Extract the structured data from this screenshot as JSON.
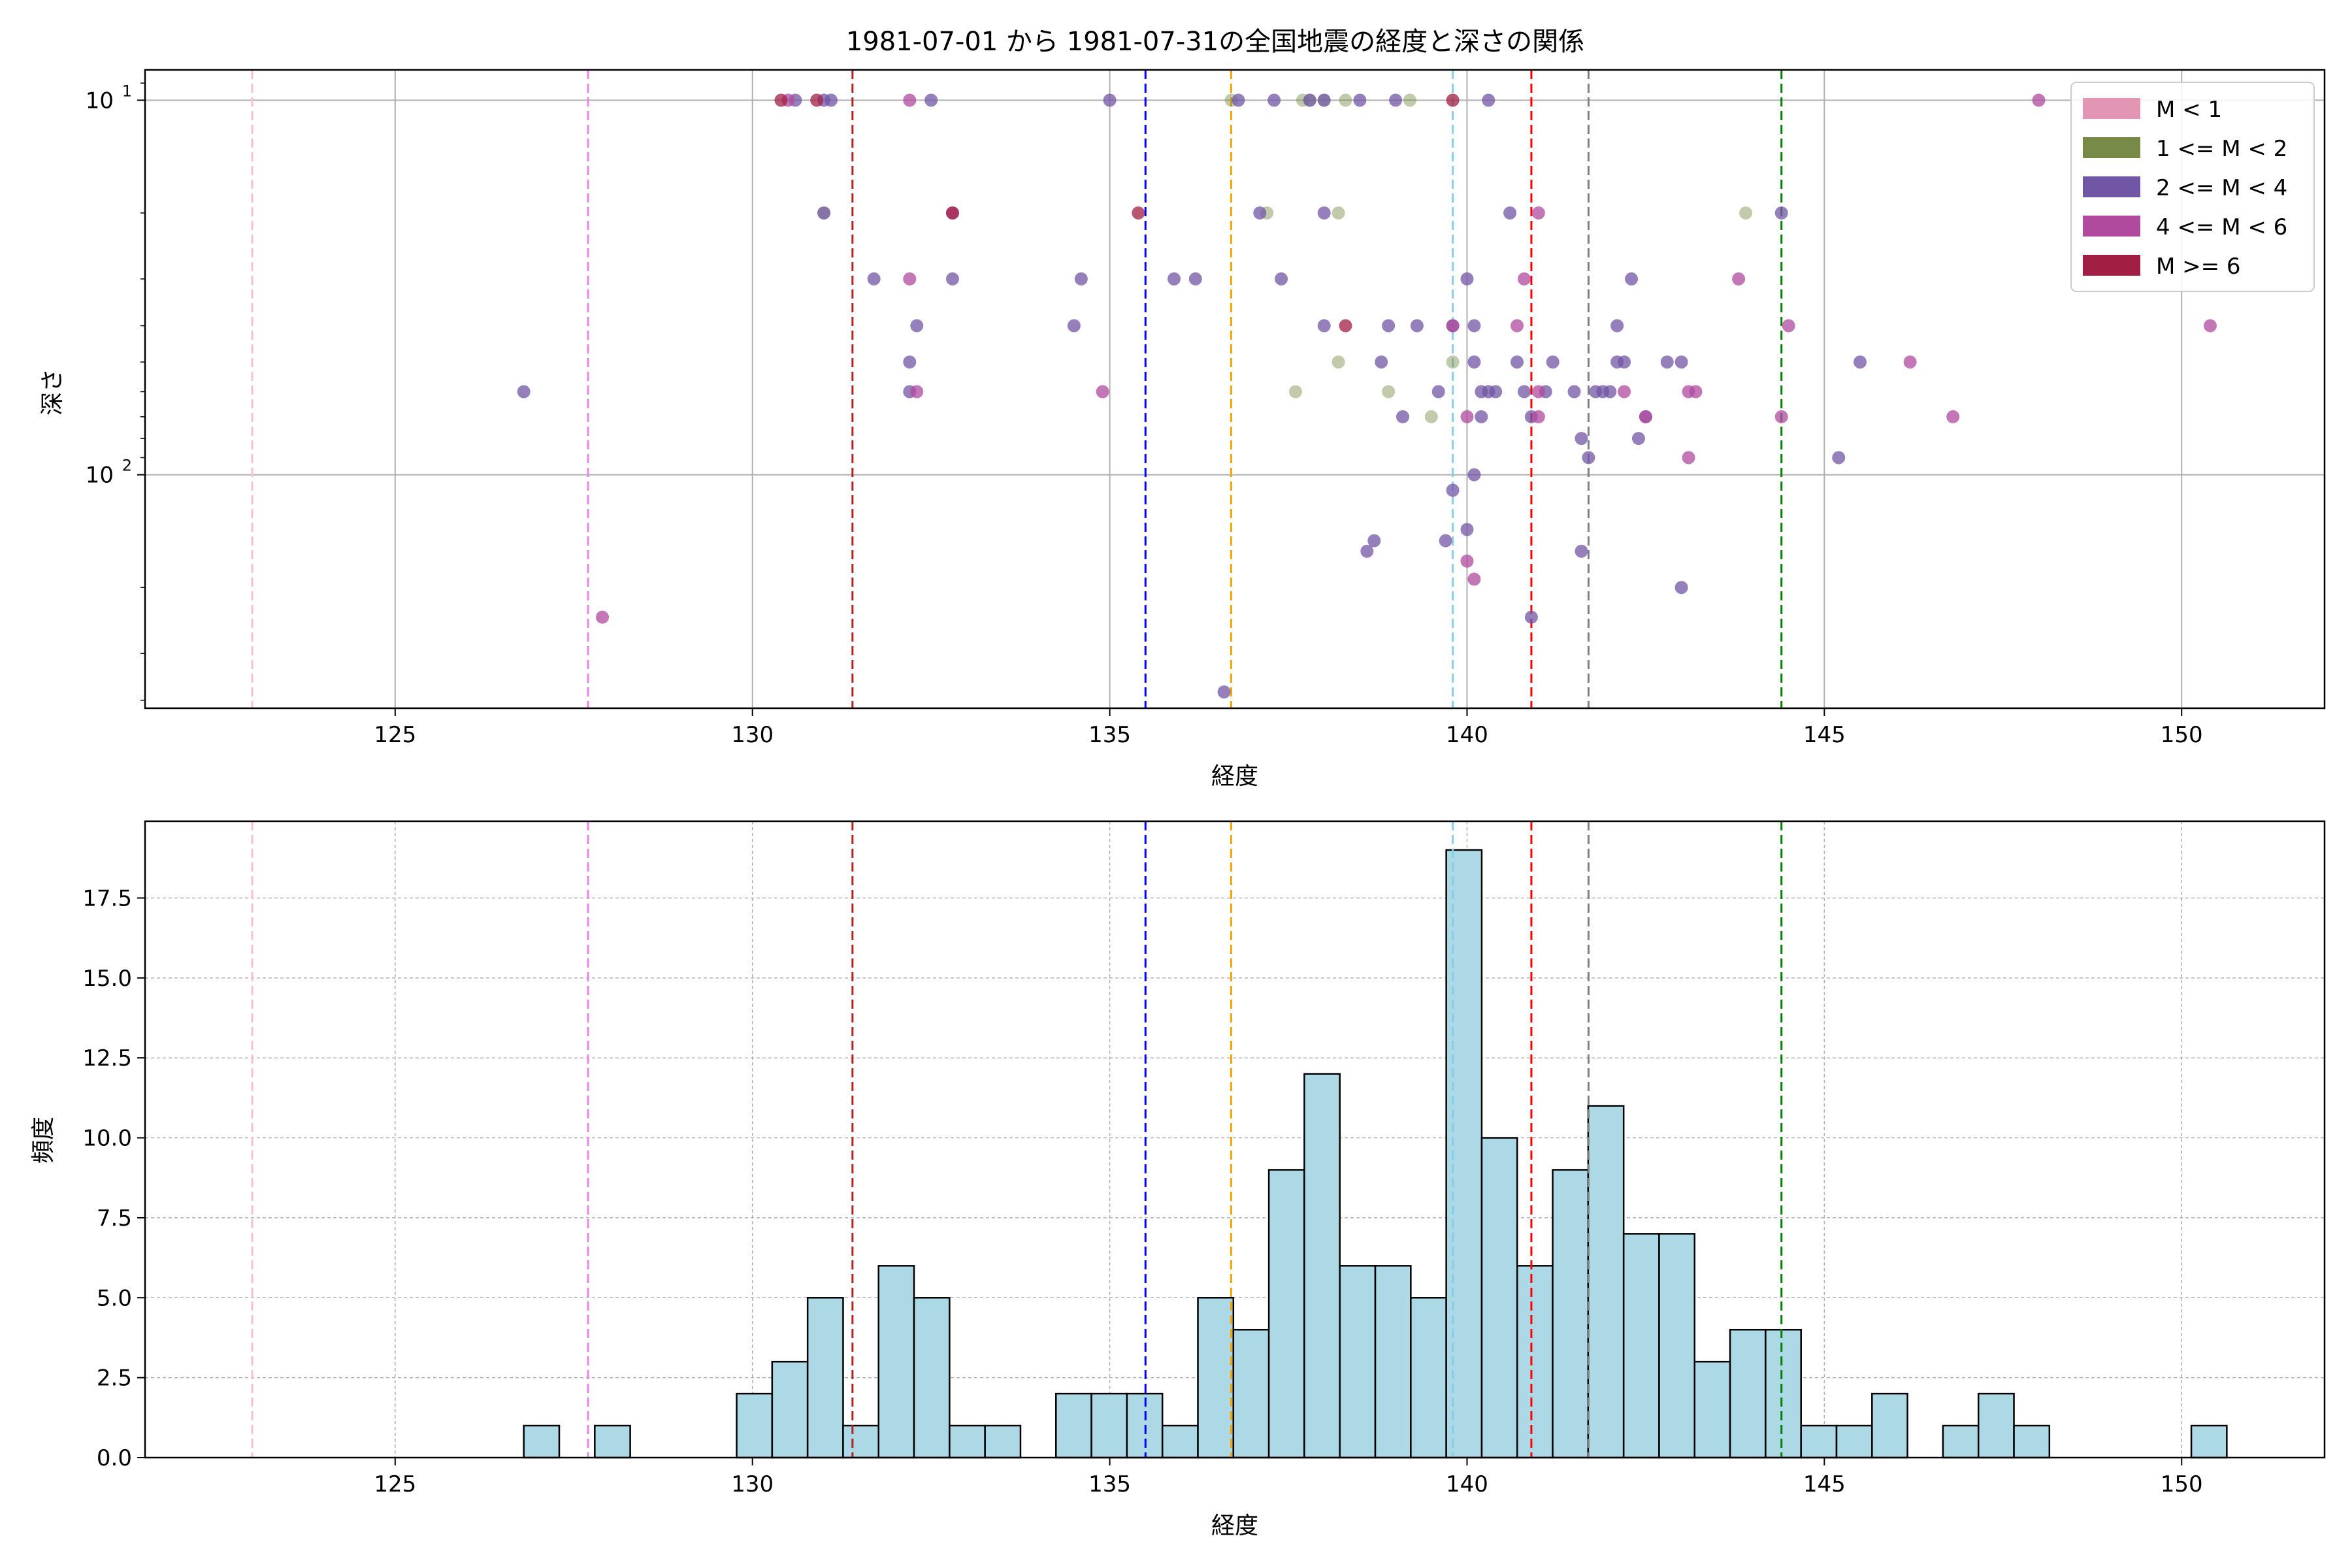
{
  "figure": {
    "title": "1981-07-01 から 1981-07-31の全国地震の経度と深さの関係"
  },
  "colors": {
    "grid": "#b0b0b0",
    "hist_fill": "#add8e6",
    "hist_edge": "#000000"
  },
  "reference_lines": [
    {
      "x": 123.0,
      "color": "#ffc0cb"
    },
    {
      "x": 127.7,
      "color": "#ee82ee"
    },
    {
      "x": 131.4,
      "color": "#b22222"
    },
    {
      "x": 135.5,
      "color": "#0000ff"
    },
    {
      "x": 136.7,
      "color": "#ffa500"
    },
    {
      "x": 139.8,
      "color": "#87ceeb"
    },
    {
      "x": 140.9,
      "color": "#ff0000"
    },
    {
      "x": 141.7,
      "color": "#808080"
    },
    {
      "x": 144.4,
      "color": "#008000"
    }
  ],
  "chart_data": [
    {
      "type": "scatter",
      "xlabel": "経度",
      "ylabel": "深さ",
      "xlim": [
        121.5,
        152.0
      ],
      "ylim": [
        420,
        8.3
      ],
      "yscale": "log",
      "y_inverted": true,
      "grid": true,
      "legend_position": "top-right",
      "xticks": [
        125,
        130,
        135,
        140,
        145,
        150
      ],
      "yticks": [
        {
          "value": 10,
          "label": "10^1"
        },
        {
          "value": 100,
          "label": "10^2"
        }
      ],
      "legend": [
        {
          "label": "M < 1",
          "color": "#e396b4"
        },
        {
          "label": "1 <= M < 2",
          "color": "#788a48"
        },
        {
          "label": "2 <= M < 4",
          "color": "#7156a5"
        },
        {
          "label": "4 <= M < 6",
          "color": "#b04a9f"
        },
        {
          "label": "M >= 6",
          "color": "#a11f43"
        }
      ],
      "series": [
        {
          "name": "1 <= M < 2",
          "points": [
            [
              131.0,
              20
            ],
            [
              137.2,
              20
            ],
            [
              138.2,
              20
            ],
            [
              136.7,
              10
            ],
            [
              137.7,
              10
            ],
            [
              137.8,
              10
            ],
            [
              138.0,
              10
            ],
            [
              138.3,
              10
            ],
            [
              139.2,
              10
            ],
            [
              137.6,
              60
            ],
            [
              138.2,
              50
            ],
            [
              138.9,
              60
            ],
            [
              139.8,
              50
            ],
            [
              139.5,
              70
            ],
            [
              143.9,
              20
            ]
          ]
        },
        {
          "name": "2 <= M < 4",
          "points": [
            [
              126.8,
              60
            ],
            [
              130.6,
              10
            ],
            [
              131.0,
              10
            ],
            [
              131.1,
              10
            ],
            [
              131.0,
              20
            ],
            [
              131.7,
              30
            ],
            [
              132.3,
              40
            ],
            [
              132.2,
              50
            ],
            [
              132.2,
              60
            ],
            [
              132.5,
              10
            ],
            [
              132.8,
              30
            ],
            [
              134.5,
              40
            ],
            [
              134.6,
              30
            ],
            [
              135.0,
              10
            ],
            [
              135.9,
              30
            ],
            [
              136.2,
              30
            ],
            [
              136.6,
              380
            ],
            [
              136.8,
              10
            ],
            [
              137.1,
              20
            ],
            [
              137.3,
              10
            ],
            [
              137.4,
              30
            ],
            [
              137.8,
              10
            ],
            [
              138.0,
              10
            ],
            [
              138.0,
              20
            ],
            [
              138.0,
              40
            ],
            [
              138.5,
              10
            ],
            [
              138.6,
              160
            ],
            [
              138.7,
              150
            ],
            [
              138.8,
              50
            ],
            [
              138.9,
              40
            ],
            [
              139.0,
              10
            ],
            [
              139.1,
              70
            ],
            [
              139.3,
              40
            ],
            [
              139.6,
              60
            ],
            [
              139.7,
              150
            ],
            [
              139.8,
              40
            ],
            [
              139.8,
              110
            ],
            [
              140.0,
              30
            ],
            [
              140.0,
              140
            ],
            [
              140.1,
              40
            ],
            [
              140.1,
              50
            ],
            [
              140.1,
              100
            ],
            [
              140.2,
              60
            ],
            [
              140.2,
              70
            ],
            [
              140.3,
              10
            ],
            [
              140.3,
              60
            ],
            [
              140.4,
              60
            ],
            [
              140.6,
              20
            ],
            [
              140.7,
              50
            ],
            [
              140.8,
              60
            ],
            [
              140.9,
              70
            ],
            [
              140.9,
              240
            ],
            [
              141.1,
              60
            ],
            [
              141.2,
              50
            ],
            [
              141.5,
              60
            ],
            [
              141.6,
              80
            ],
            [
              141.7,
              90
            ],
            [
              141.6,
              160
            ],
            [
              141.8,
              60
            ],
            [
              141.9,
              60
            ],
            [
              142.0,
              60
            ],
            [
              142.1,
              40
            ],
            [
              142.1,
              50
            ],
            [
              142.2,
              50
            ],
            [
              142.3,
              30
            ],
            [
              142.4,
              80
            ],
            [
              142.5,
              70
            ],
            [
              142.8,
              50
            ],
            [
              143.0,
              50
            ],
            [
              143.0,
              200
            ],
            [
              144.4,
              20
            ],
            [
              145.2,
              90
            ],
            [
              145.5,
              50
            ]
          ]
        },
        {
          "name": "4 <= M < 6",
          "points": [
            [
              127.9,
              240
            ],
            [
              130.5,
              10
            ],
            [
              132.2,
              10
            ],
            [
              132.2,
              30
            ],
            [
              132.3,
              60
            ],
            [
              132.8,
              20
            ],
            [
              134.9,
              60
            ],
            [
              139.8,
              40
            ],
            [
              140.0,
              70
            ],
            [
              140.0,
              170
            ],
            [
              140.1,
              190
            ],
            [
              140.7,
              40
            ],
            [
              140.8,
              30
            ],
            [
              141.0,
              20
            ],
            [
              141.0,
              60
            ],
            [
              141.0,
              70
            ],
            [
              142.2,
              60
            ],
            [
              142.5,
              70
            ],
            [
              143.1,
              60
            ],
            [
              143.1,
              90
            ],
            [
              143.2,
              60
            ],
            [
              143.8,
              30
            ],
            [
              144.4,
              70
            ],
            [
              144.5,
              40
            ],
            [
              146.2,
              50
            ],
            [
              146.8,
              70
            ],
            [
              148.0,
              10
            ],
            [
              150.4,
              40
            ]
          ]
        },
        {
          "name": "M >= 6",
          "points": [
            [
              130.4,
              10
            ],
            [
              130.9,
              10
            ],
            [
              132.8,
              20
            ],
            [
              135.4,
              20
            ],
            [
              138.3,
              40
            ],
            [
              139.8,
              10
            ]
          ]
        }
      ]
    },
    {
      "type": "bar",
      "xlabel": "経度",
      "ylabel": "頻度",
      "xlim": [
        121.5,
        152.0
      ],
      "ylim": [
        0,
        19.9
      ],
      "grid": true,
      "grid_style": "dashed",
      "xticks": [
        125,
        130,
        135,
        140,
        145,
        150
      ],
      "yticks": [
        "0.0",
        "2.5",
        "5.0",
        "7.5",
        "10.0",
        "12.5",
        "15.0",
        "17.5"
      ],
      "bin_start": 126.8,
      "bin_width": 0.4965,
      "counts": [
        1,
        0,
        1,
        0,
        0,
        0,
        2,
        3,
        5,
        1,
        6,
        5,
        1,
        1,
        0,
        2,
        2,
        2,
        1,
        5,
        4,
        9,
        12,
        6,
        6,
        5,
        19,
        10,
        6,
        9,
        11,
        7,
        7,
        3,
        4,
        4,
        1,
        1,
        2,
        0,
        1,
        2,
        1,
        0,
        0,
        0,
        0,
        1
      ]
    }
  ]
}
